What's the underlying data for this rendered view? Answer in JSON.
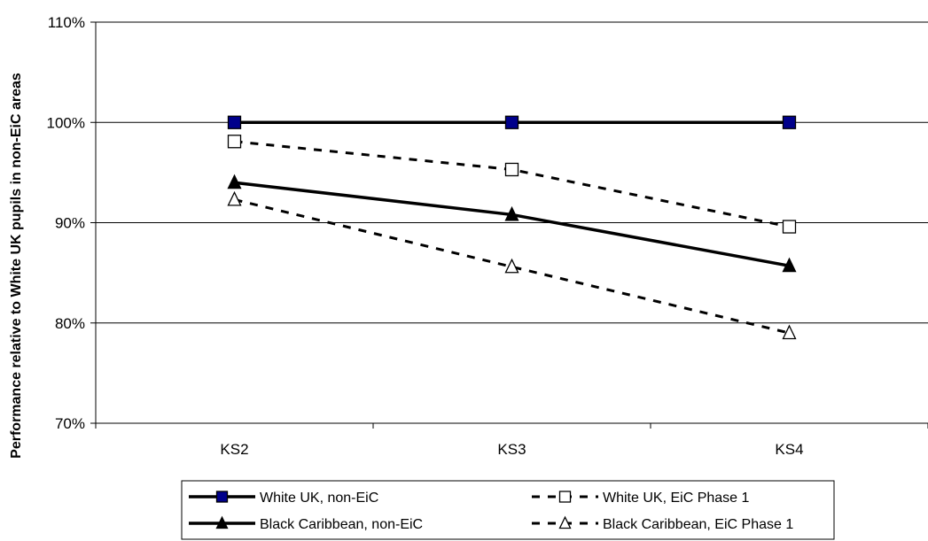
{
  "chart_data": {
    "type": "line",
    "categories": [
      "KS2",
      "KS3",
      "KS4"
    ],
    "ylabel": "Performance relative to White UK pupils in non-EiC areas",
    "ylim": [
      70,
      110
    ],
    "yticks": [
      "70%",
      "80%",
      "90%",
      "100%",
      "110%"
    ],
    "grid": true,
    "legend_position": "bottom",
    "series": [
      {
        "name": "White UK, non-EiC",
        "values": [
          100,
          100,
          100
        ],
        "line": "solid",
        "marker": "square-filled",
        "color": "#000000",
        "marker_fill": "#00008B"
      },
      {
        "name": "White UK, EiC Phase 1",
        "values": [
          98.1,
          95.3,
          89.6
        ],
        "line": "dashed",
        "marker": "square-open",
        "color": "#000000",
        "marker_fill": "#ffffff"
      },
      {
        "name": "Black Caribbean, non-EiC",
        "values": [
          94.0,
          90.8,
          85.7
        ],
        "line": "solid",
        "marker": "triangle-filled",
        "color": "#000000",
        "marker_fill": "#000000"
      },
      {
        "name": "Black Caribbean, EiC Phase 1",
        "values": [
          92.3,
          85.6,
          79.0
        ],
        "line": "dashed",
        "marker": "triangle-open",
        "color": "#000000",
        "marker_fill": "#ffffff"
      }
    ]
  }
}
